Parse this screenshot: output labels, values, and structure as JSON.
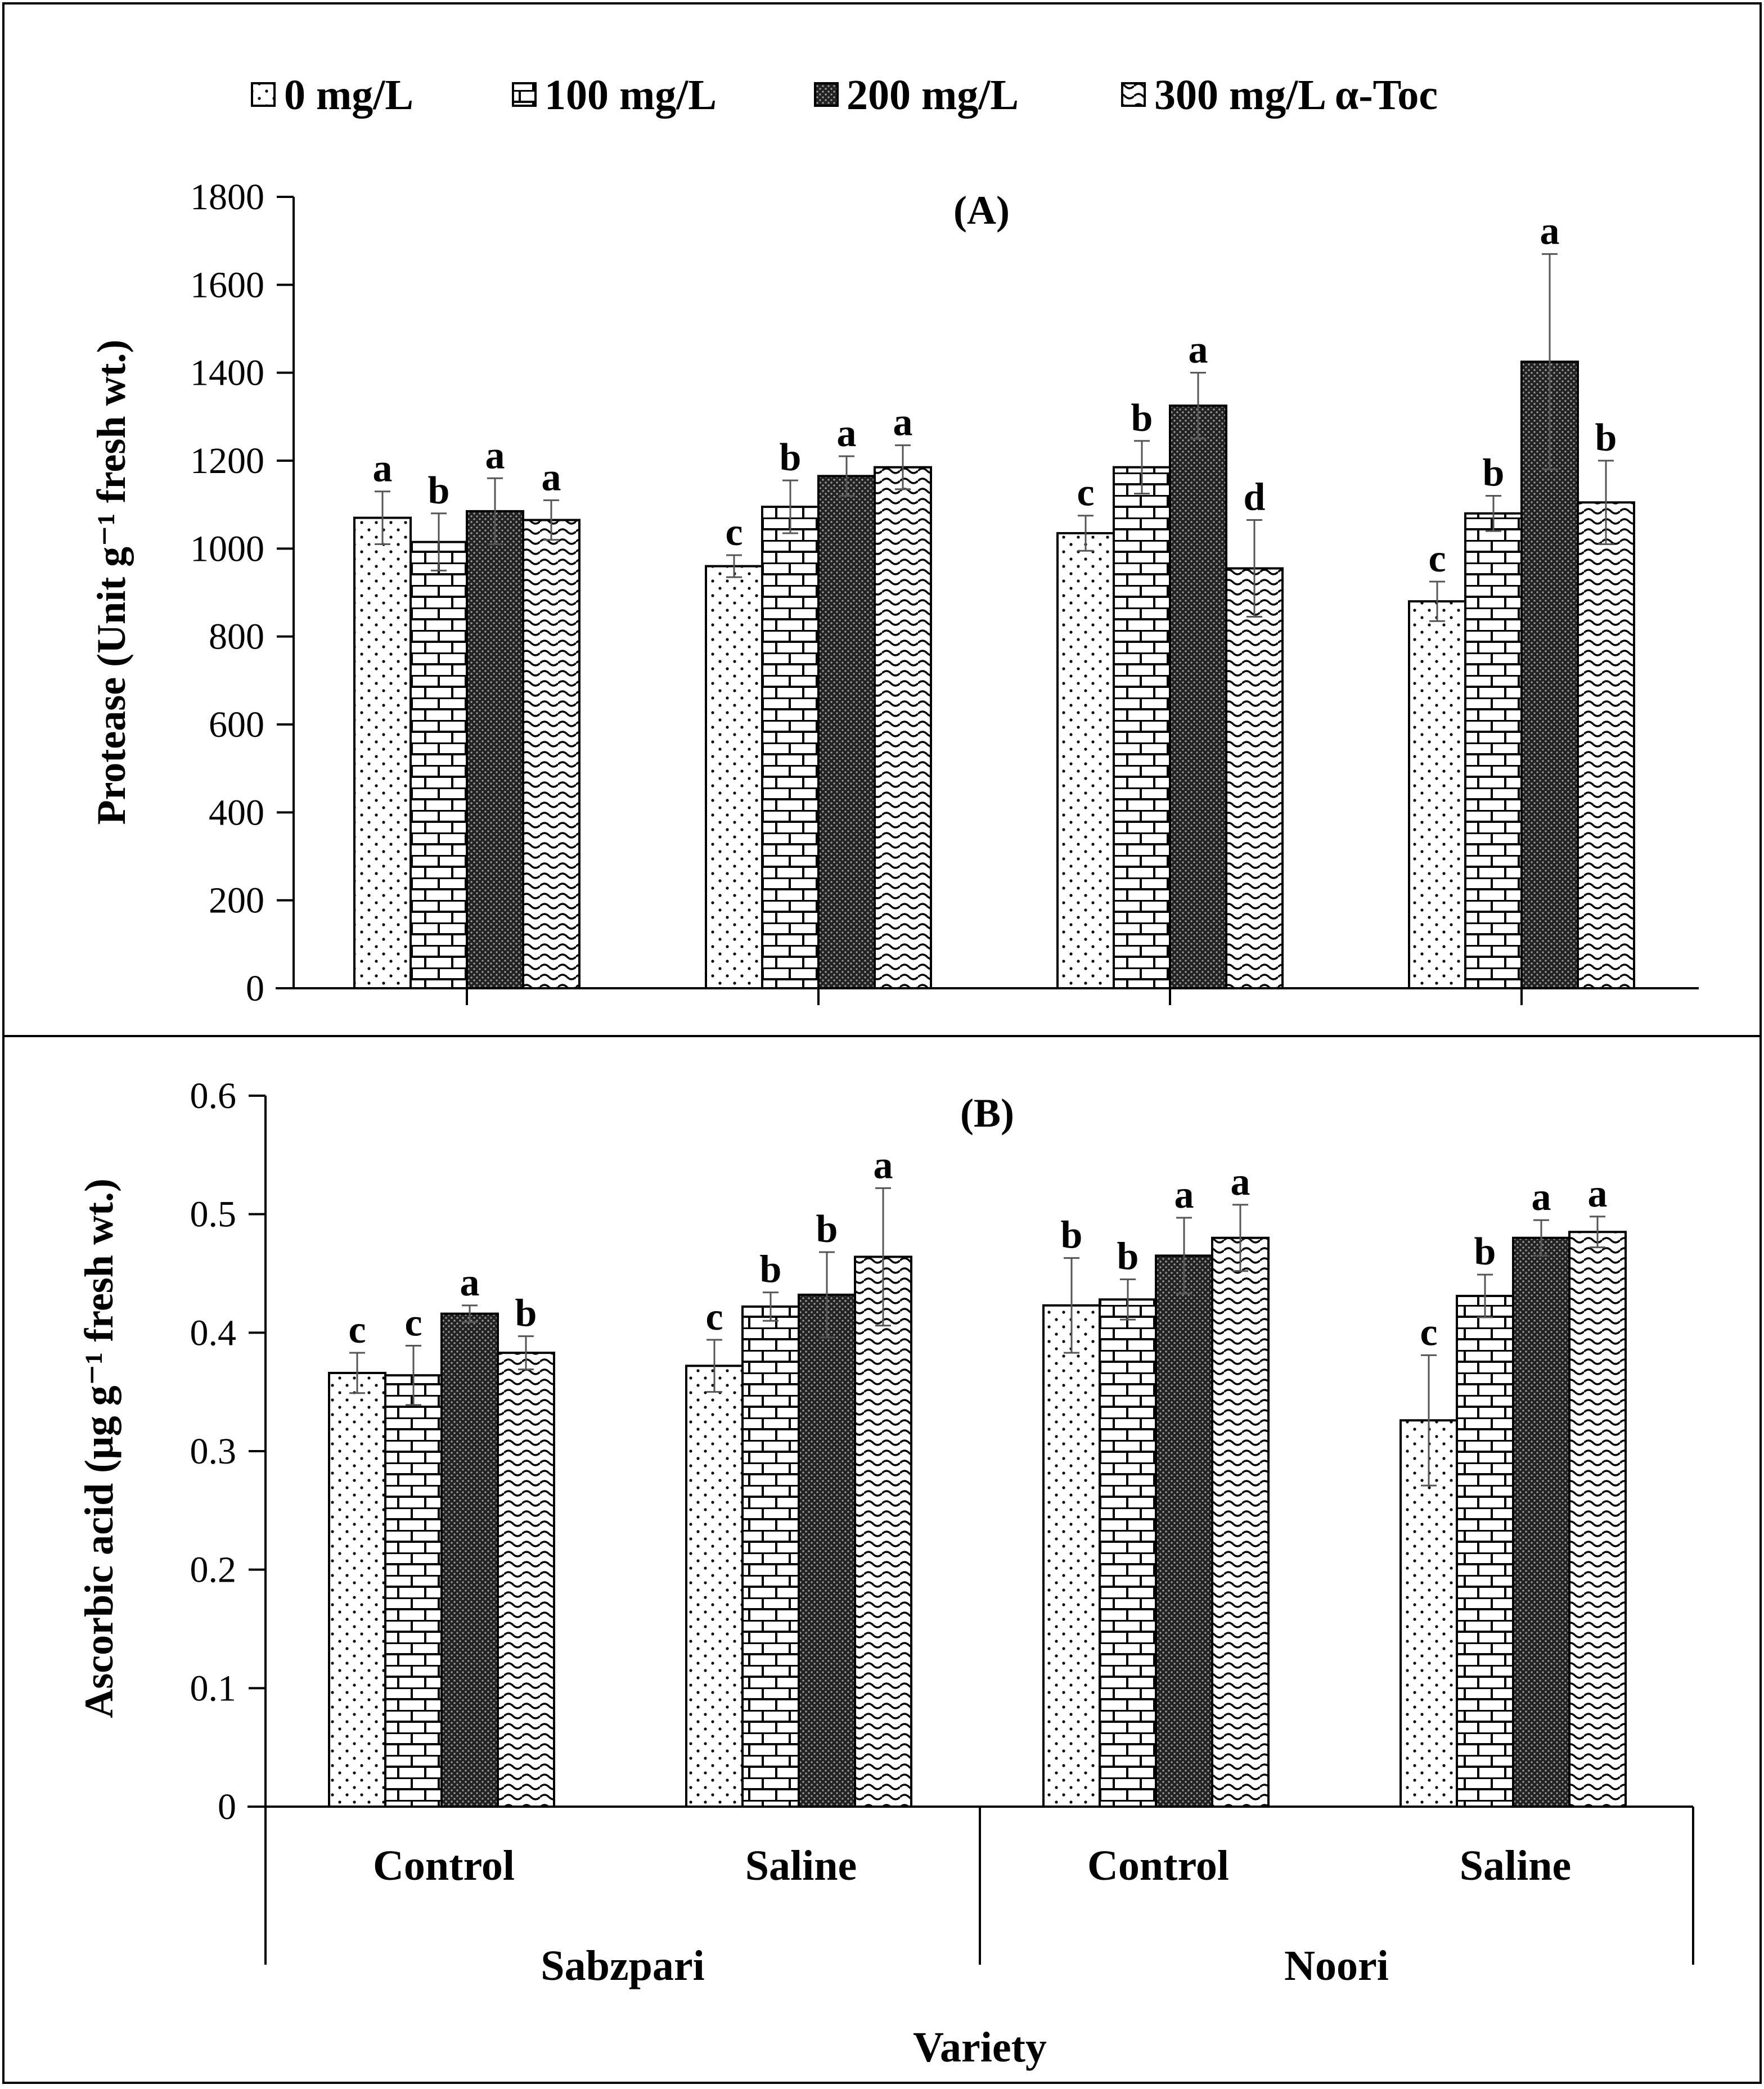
{
  "legend": {
    "items": [
      {
        "label": "0 mg/L",
        "pattern": "dots"
      },
      {
        "label": "100 mg/L",
        "pattern": "bricks"
      },
      {
        "label": "200 mg/L",
        "pattern": "dense"
      },
      {
        "label": "300 mg/L α-Toc",
        "pattern": "waves"
      }
    ]
  },
  "x_axis": {
    "title": "Variety",
    "treatments": [
      "Control",
      "Saline",
      "Control",
      "Saline"
    ],
    "varieties": [
      "Sabzpari",
      "Noori"
    ]
  },
  "chart_data": [
    {
      "type": "bar",
      "panel_label": "(A)",
      "ylabel": "Protease (Unit g⁻¹ fresh wt.)",
      "ylim": [
        0,
        1800
      ],
      "yticks": [
        "0",
        "200",
        "400",
        "600",
        "800",
        "1000",
        "1200",
        "1400",
        "1600",
        "1800"
      ],
      "groups": [
        "Sabzpari Control",
        "Sabzpari Saline",
        "Noori Control",
        "Noori Saline"
      ],
      "series": [
        {
          "name": "0 mg/L",
          "values": [
            1070,
            960,
            1035,
            880
          ],
          "errors": [
            60,
            25,
            40,
            45
          ],
          "letters": [
            "a",
            "c",
            "c",
            "c"
          ]
        },
        {
          "name": "100 mg/L",
          "values": [
            1015,
            1095,
            1185,
            1080
          ],
          "errors": [
            65,
            60,
            60,
            40
          ],
          "letters": [
            "b",
            "b",
            "b",
            "b"
          ]
        },
        {
          "name": "200 mg/L",
          "values": [
            1085,
            1165,
            1325,
            1425
          ],
          "errors": [
            75,
            45,
            75,
            245
          ],
          "letters": [
            "a",
            "a",
            "a",
            "a"
          ]
        },
        {
          "name": "300 mg/L α-Toc",
          "values": [
            1065,
            1185,
            955,
            1105
          ],
          "errors": [
            45,
            50,
            110,
            95
          ],
          "letters": [
            "a",
            "a",
            "d",
            "b"
          ]
        }
      ]
    },
    {
      "type": "bar",
      "panel_label": "(B)",
      "ylabel": "Ascorbic acid (µg g⁻¹ fresh wt.)",
      "ylim": [
        0,
        0.6
      ],
      "yticks": [
        "0",
        "0.1",
        "0.2",
        "0.3",
        "0.4",
        "0.5",
        "0.6"
      ],
      "groups": [
        "Sabzpari Control",
        "Sabzpari Saline",
        "Noori Control",
        "Noori Saline"
      ],
      "series": [
        {
          "name": "0 mg/L",
          "values": [
            0.366,
            0.372,
            0.423,
            0.326
          ],
          "errors": [
            0.017,
            0.022,
            0.04,
            0.055
          ],
          "letters": [
            "c",
            "c",
            "b",
            "c"
          ]
        },
        {
          "name": "100 mg/L",
          "values": [
            0.364,
            0.422,
            0.428,
            0.431
          ],
          "errors": [
            0.025,
            0.012,
            0.017,
            0.018
          ],
          "letters": [
            "c",
            "b",
            "b",
            "b"
          ]
        },
        {
          "name": "200 mg/L",
          "values": [
            0.416,
            0.432,
            0.465,
            0.48
          ],
          "errors": [
            0.007,
            0.036,
            0.032,
            0.015
          ],
          "letters": [
            "a",
            "b",
            "a",
            "a"
          ]
        },
        {
          "name": "300 mg/L α-Toc",
          "values": [
            0.383,
            0.464,
            0.48,
            0.485
          ],
          "errors": [
            0.014,
            0.058,
            0.028,
            0.013
          ],
          "letters": [
            "b",
            "a",
            "a",
            "a"
          ]
        }
      ]
    }
  ]
}
